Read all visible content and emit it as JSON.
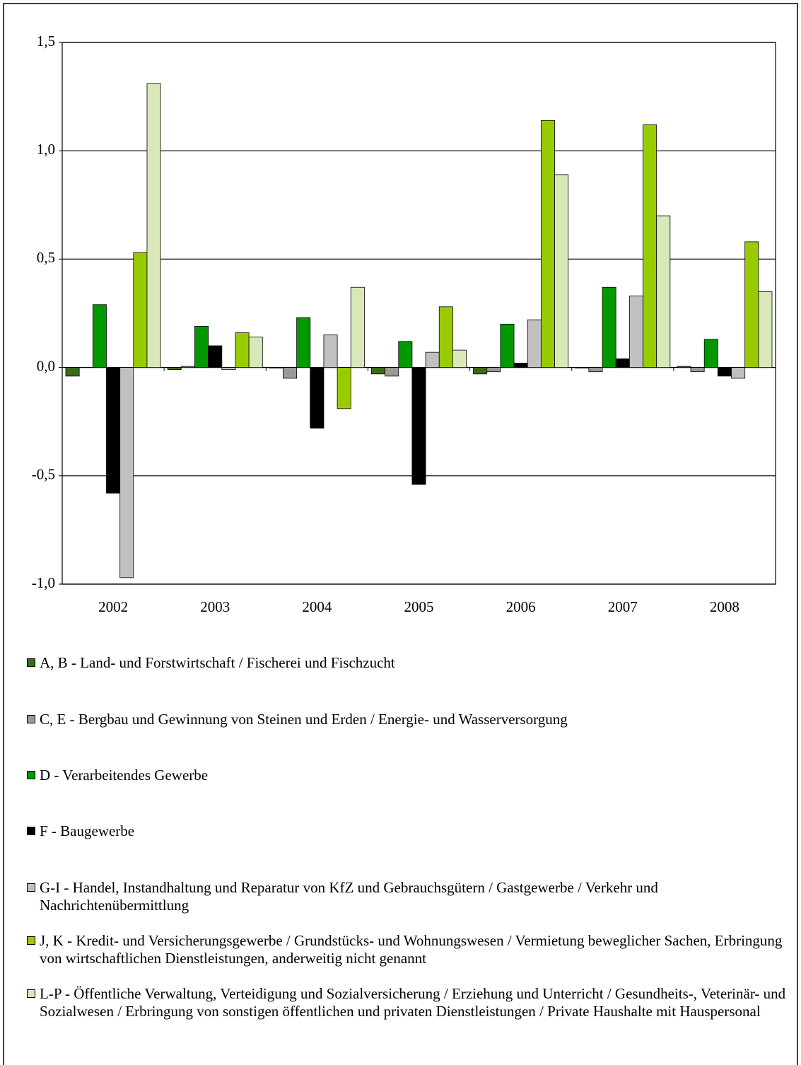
{
  "chart_data": {
    "type": "bar",
    "categories": [
      "2002",
      "2003",
      "2004",
      "2005",
      "2006",
      "2007",
      "2008"
    ],
    "series": [
      {
        "name": "A, B - Land- und Forstwirtschaft / Fischerei und Fischzucht",
        "color": "#3a6b1a",
        "values": [
          -0.04,
          -0.01,
          -0.003,
          -0.03,
          -0.03,
          -0.003,
          0.005
        ]
      },
      {
        "name": "C, E - Bergbau und Gewinnung von Steinen und Erden / Energie- und Wasserversorgung",
        "color": "#999999",
        "values": [
          0,
          0.005,
          -0.05,
          -0.04,
          -0.02,
          -0.02,
          -0.02
        ]
      },
      {
        "name": "D - Verarbeitendes Gewerbe",
        "color": "#009900",
        "values": [
          0.29,
          0.19,
          0.23,
          0.12,
          0.2,
          0.37,
          0.13
        ]
      },
      {
        "name": "F - Baugewerbe",
        "color": "#000000",
        "values": [
          -0.58,
          0.1,
          -0.28,
          -0.54,
          0.02,
          0.04,
          -0.04
        ]
      },
      {
        "name": "G-I - Handel, Instandhaltung und Reparatur von KfZ und Gebrauchsgütern / Gastgewerbe / Verkehr und Nachrichtenübermittlung",
        "color": "#c0c0c0",
        "values": [
          -0.97,
          -0.01,
          0.15,
          0.07,
          0.22,
          0.33,
          -0.05
        ]
      },
      {
        "name": "J, K - Kredit- und Versicherungsgewerbe / Grundstücks- und Wohnungswesen / Vermietung beweglicher Sachen, Erbringung von wirtschaftlichen Dienstleistungen, anderweitig nicht genannt",
        "color": "#99cc00",
        "values": [
          0.53,
          0.16,
          -0.19,
          0.28,
          1.14,
          1.12,
          0.58
        ]
      },
      {
        "name": "L-P - Öffentliche Verwaltung, Verteidigung und Sozialversicherung / Erziehung und Unterricht / Gesundheits-, Veterinär- und Sozialwesen / Erbringung von sonstigen öffentlichen und privaten Dienstleistungen / Private Haushalte mit Hauspersonal",
        "color": "#d9e8b8",
        "values": [
          1.31,
          0.14,
          0.37,
          0.08,
          0.89,
          0.7,
          0.35
        ]
      }
    ],
    "ylim": [
      -1,
      1.5
    ],
    "yticks": [
      {
        "value": -1,
        "label": "-1,0"
      },
      {
        "value": -0.5,
        "label": "-0,5"
      },
      {
        "value": 0,
        "label": "0,0"
      },
      {
        "value": 0.5,
        "label": "0,5"
      },
      {
        "value": 1,
        "label": "1,0"
      },
      {
        "value": 1.5,
        "label": "1,5"
      }
    ],
    "grid": true,
    "legend": "bottom"
  }
}
